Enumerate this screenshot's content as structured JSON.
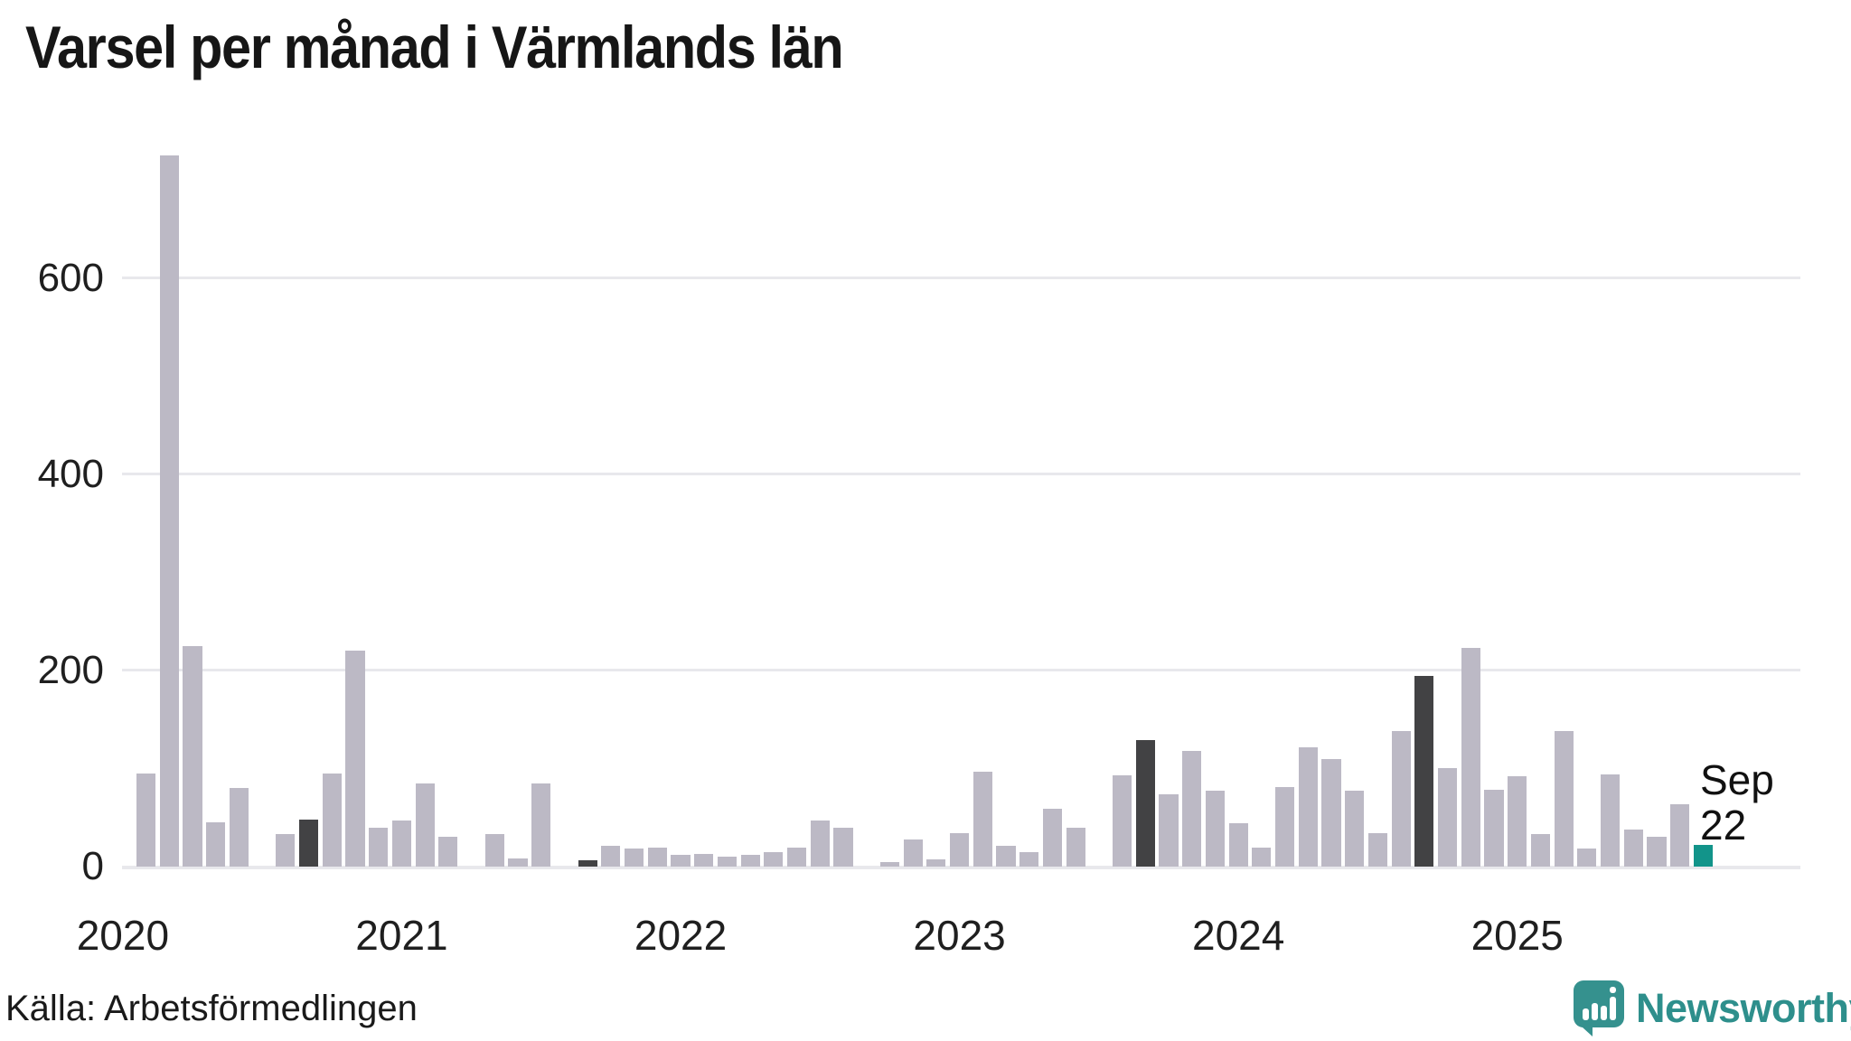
{
  "title": "Varsel per månad i Värmlands län",
  "source": "Källa: Arbetsförmedlingen",
  "annotation": {
    "month": "Sep",
    "value": "22"
  },
  "brand": {
    "name": "Newsworthy",
    "color": "#2e8f8c"
  },
  "colors": {
    "bar": "#bcb9c5",
    "september_highlight": "#424244",
    "current_highlight": "#12948a",
    "gridline": "#e8e8ec",
    "text": "#1a1a1a"
  },
  "chart_data": {
    "type": "bar",
    "title": "Varsel per månad i Värmlands län",
    "xlabel": "",
    "ylabel": "",
    "x_start": "2020-01",
    "x_end": "2025-09",
    "x_tick_labels": [
      "2020",
      "2021",
      "2022",
      "2023",
      "2024",
      "2025"
    ],
    "y_ticks": [
      0,
      200,
      400,
      600
    ],
    "y_tick_labels": [
      "0",
      "200",
      "400",
      "600"
    ],
    "ylim": [
      0,
      740
    ],
    "grid": "horizontal",
    "legend": "none",
    "series": [
      {
        "name": "Varsel",
        "values": [
          0,
          95,
          725,
          225,
          45,
          80,
          0,
          33,
          48,
          95,
          220,
          40,
          47,
          85,
          30,
          0,
          33,
          8,
          85,
          0,
          6,
          21,
          18,
          19,
          12,
          13,
          10,
          12,
          15,
          19,
          47,
          40,
          0,
          5,
          28,
          7,
          34,
          97,
          21,
          15,
          59,
          40,
          0,
          93,
          129,
          74,
          118,
          77,
          44,
          19,
          81,
          122,
          110,
          77,
          34,
          138,
          194,
          100,
          223,
          78,
          92,
          33,
          138,
          18,
          94,
          38,
          30,
          64,
          22
        ]
      }
    ],
    "highlights": {
      "september_indices": [
        8,
        20,
        32,
        44,
        56
      ],
      "september_color": "#424244",
      "current_index": 68,
      "current_color": "#12948a",
      "current_label": "Sep 22"
    }
  }
}
